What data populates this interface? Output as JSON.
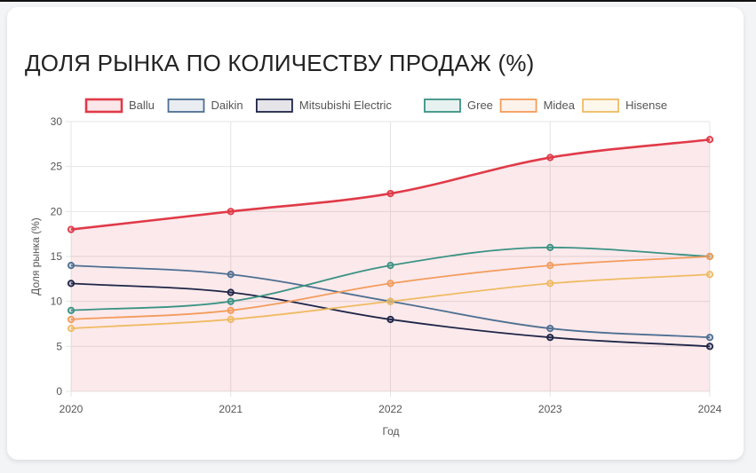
{
  "chart_data": {
    "type": "line",
    "title": "ДОЛЯ РЫНКА ПО КОЛИЧЕСТВУ ПРОДАЖ (%)",
    "xlabel": "Год",
    "ylabel": "Доля рынка (%)",
    "x": [
      "2020",
      "2021",
      "2022",
      "2023",
      "2024"
    ],
    "ylim": [
      0,
      30
    ],
    "yticks": [
      "0",
      "5",
      "10",
      "15",
      "20",
      "25",
      "30"
    ],
    "grid": true,
    "legend_position": "top",
    "series": [
      {
        "name": "Ballu",
        "values": [
          18,
          20,
          22,
          26,
          28
        ],
        "color": "#e03a48",
        "fill": true
      },
      {
        "name": "Daikin",
        "values": [
          14,
          13,
          10,
          7,
          6
        ],
        "color": "#4d6f92",
        "fill": false
      },
      {
        "name": "Mitsubishi Electric",
        "values": [
          12,
          11,
          8,
          6,
          5
        ],
        "color": "#1e2547",
        "fill": false
      },
      {
        "name": "Gree",
        "values": [
          9,
          10,
          14,
          16,
          15
        ],
        "color": "#3a9283",
        "fill": false
      },
      {
        "name": "Midea",
        "values": [
          8,
          9,
          12,
          14,
          15
        ],
        "color": "#f39c5c",
        "fill": false
      },
      {
        "name": "Hisense",
        "values": [
          7,
          8,
          10,
          12,
          13
        ],
        "color": "#efbb63",
        "fill": false
      }
    ]
  }
}
